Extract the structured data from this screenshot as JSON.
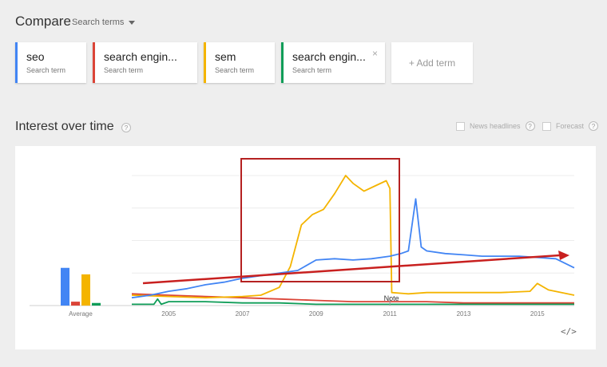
{
  "header": {
    "title": "Compare",
    "search_terms_label": "Search terms"
  },
  "terms": [
    {
      "name": "seo",
      "sub": "Search term",
      "color": "#4285f4"
    },
    {
      "name": "search engin...",
      "sub": "Search term",
      "color": "#db4437"
    },
    {
      "name": "sem",
      "sub": "Search term",
      "color": "#f4b400"
    },
    {
      "name": "search engin...",
      "sub": "Search term",
      "color": "#0f9d58"
    }
  ],
  "add_term_label": "+ Add term",
  "close_glyph": "×",
  "section": {
    "title": "Interest over time",
    "help_glyph": "?"
  },
  "options": {
    "news_headlines": "News headlines",
    "forecast": "Forecast"
  },
  "embed_glyph": "</>",
  "chart_data": {
    "type": "line",
    "title": "",
    "xlabel": "",
    "ylabel": "",
    "x_range": [
      2004,
      2016
    ],
    "ylim": [
      0,
      100
    ],
    "gridlines": [
      25,
      50,
      75,
      100
    ],
    "tick_labels": [
      "2005",
      "2007",
      "2009",
      "2011",
      "2013",
      "2015"
    ],
    "tick_years": [
      2005,
      2007,
      2009,
      2011,
      2013,
      2015
    ],
    "averages_label": "Average",
    "averages": [
      {
        "series": "seo",
        "value": 29
      },
      {
        "series": "search engine",
        "value": 3
      },
      {
        "series": "sem",
        "value": 24
      },
      {
        "series": "search engine optimization",
        "value": 2
      }
    ],
    "annotation": {
      "label": "Note",
      "x": 2011.0
    },
    "series": [
      {
        "color": "#4285f4",
        "points": [
          [
            2004,
            6
          ],
          [
            2004.5,
            8
          ],
          [
            2005,
            11
          ],
          [
            2005.5,
            13
          ],
          [
            2006,
            16
          ],
          [
            2006.5,
            18
          ],
          [
            2007,
            21
          ],
          [
            2007.5,
            23
          ],
          [
            2008,
            25
          ],
          [
            2008.5,
            27
          ],
          [
            2009,
            35
          ],
          [
            2009.5,
            36
          ],
          [
            2010,
            35
          ],
          [
            2010.5,
            36
          ],
          [
            2011,
            38
          ],
          [
            2011.3,
            40
          ],
          [
            2011.5,
            42
          ],
          [
            2011.7,
            82
          ],
          [
            2011.85,
            45
          ],
          [
            2012,
            42
          ],
          [
            2012.5,
            40
          ],
          [
            2013,
            39
          ],
          [
            2013.5,
            38
          ],
          [
            2014,
            38
          ],
          [
            2014.5,
            38
          ],
          [
            2015,
            37
          ],
          [
            2015.5,
            36
          ],
          [
            2016,
            29
          ]
        ]
      },
      {
        "color": "#db4437",
        "points": [
          [
            2004,
            9
          ],
          [
            2005,
            8
          ],
          [
            2006,
            7
          ],
          [
            2007,
            6
          ],
          [
            2008,
            5
          ],
          [
            2009,
            4
          ],
          [
            2010,
            3
          ],
          [
            2011,
            3
          ],
          [
            2012,
            3
          ],
          [
            2013,
            2
          ],
          [
            2014,
            2
          ],
          [
            2015,
            2
          ],
          [
            2016,
            2
          ]
        ]
      },
      {
        "color": "#f4b400",
        "points": [
          [
            2004,
            8
          ],
          [
            2005,
            7
          ],
          [
            2006,
            6
          ],
          [
            2007,
            7
          ],
          [
            2007.5,
            8
          ],
          [
            2008,
            14
          ],
          [
            2008.3,
            30
          ],
          [
            2008.6,
            62
          ],
          [
            2008.9,
            70
          ],
          [
            2009.2,
            74
          ],
          [
            2009.5,
            86
          ],
          [
            2009.8,
            100
          ],
          [
            2010,
            94
          ],
          [
            2010.3,
            88
          ],
          [
            2010.6,
            92
          ],
          [
            2010.9,
            96
          ],
          [
            2011,
            90
          ],
          [
            2011.05,
            10
          ],
          [
            2011.5,
            9
          ],
          [
            2012,
            10
          ],
          [
            2013,
            10
          ],
          [
            2014,
            10
          ],
          [
            2014.8,
            11
          ],
          [
            2015,
            17
          ],
          [
            2015.3,
            12
          ],
          [
            2016,
            8
          ]
        ]
      },
      {
        "color": "#0f9d58",
        "points": [
          [
            2004,
            1
          ],
          [
            2004.6,
            1
          ],
          [
            2004.7,
            5
          ],
          [
            2004.8,
            1
          ],
          [
            2005,
            3
          ],
          [
            2006,
            3
          ],
          [
            2007,
            2
          ],
          [
            2008,
            2
          ],
          [
            2009,
            1
          ],
          [
            2010,
            1
          ],
          [
            2011,
            1
          ],
          [
            2012,
            1
          ],
          [
            2013,
            1
          ],
          [
            2014,
            1
          ],
          [
            2015,
            1
          ],
          [
            2016,
            1
          ]
        ]
      }
    ]
  }
}
